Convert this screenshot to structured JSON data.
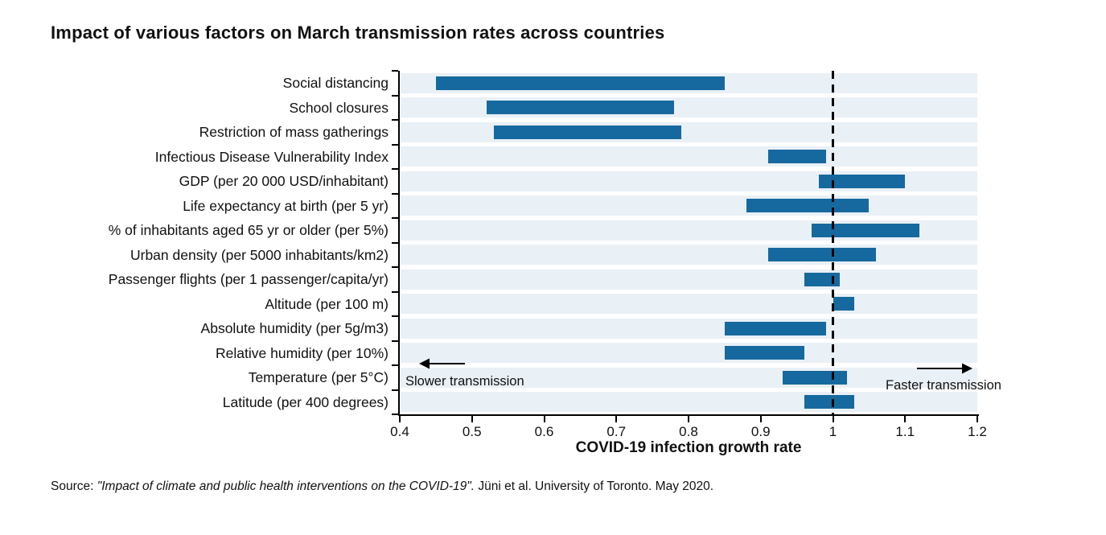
{
  "title": "Impact of various factors on March transmission rates across countries",
  "chart_data": {
    "type": "bar",
    "orientation": "horizontal-range",
    "categories": [
      "Social distancing",
      "School closures",
      "Restriction of mass gatherings",
      "Infectious Disease Vulnerability Index",
      "GDP (per 20 000 USD/inhabitant)",
      "Life expectancy at birth (per 5 yr)",
      "% of inhabitants aged 65 yr or older (per 5%)",
      "Urban density (per 5000 inhabitants/km2)",
      "Passenger flights (per 1 passenger/capita/yr)",
      "Altitude (per 100 m)",
      "Absolute humidity (per 5g/m3)",
      "Relative humidity (per 10%)",
      "Temperature (per 5°C)",
      "Latitude (per 400 degrees)"
    ],
    "ranges": [
      [
        0.45,
        0.85
      ],
      [
        0.52,
        0.78
      ],
      [
        0.53,
        0.79
      ],
      [
        0.91,
        0.99
      ],
      [
        0.98,
        1.1
      ],
      [
        0.88,
        1.05
      ],
      [
        0.97,
        1.12
      ],
      [
        0.91,
        1.06
      ],
      [
        0.96,
        1.01
      ],
      [
        1.0,
        1.03
      ],
      [
        0.85,
        0.99
      ],
      [
        0.85,
        0.96
      ],
      [
        0.93,
        1.02
      ],
      [
        0.96,
        1.03
      ]
    ],
    "xlabel": "COVID-19 infection growth rate",
    "xlim": [
      0.4,
      1.2
    ],
    "x_tick_values": [
      0.4,
      0.5,
      0.6,
      0.7,
      0.8,
      0.9,
      1.0,
      1.1,
      1.2
    ],
    "x_tick_labels": [
      "0.4",
      "0.5",
      "0.6",
      "0.7",
      "0.8",
      "0.9",
      "1",
      "1.1",
      "1.2"
    ],
    "reference_line": {
      "value": 1,
      "style": "dashed"
    },
    "annotation_left": "Slower transmission",
    "annotation_right": "Faster transmission",
    "grid": "row-bands",
    "legend": "none",
    "colors": {
      "bar": "#16699e",
      "row_band": "#e9f0f6",
      "axis": "#000000",
      "reference_line": "#000000"
    }
  },
  "source": {
    "prefix": "Source: ",
    "title_italic": "\"Impact of climate and public health interventions on the COVID-19\".",
    "credit": " Jüni et al. University of Toronto. May 2020."
  }
}
